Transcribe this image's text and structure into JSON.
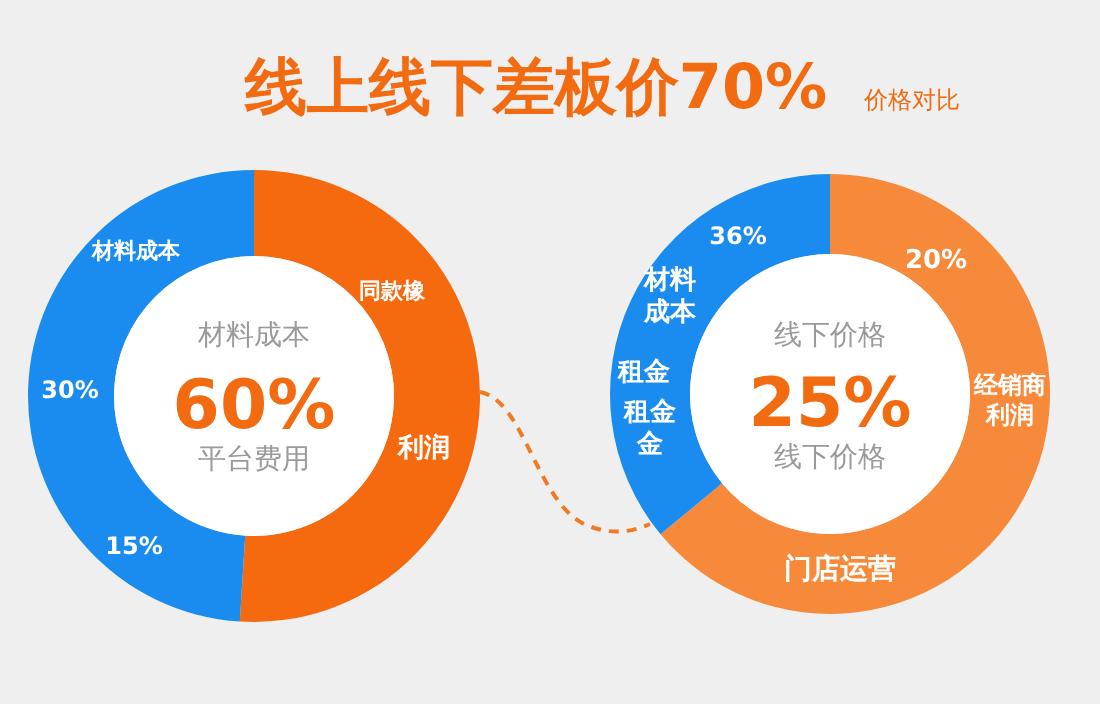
{
  "chart_data": [
    {
      "type": "other",
      "title": "线上线下差板价70%",
      "subtitle": "价格对比"
    },
    {
      "type": "donut",
      "categories": [
        null,
        null
      ],
      "values": [
        51,
        49
      ],
      "colors": [
        "#f56a0f",
        "#1a8cf0"
      ],
      "annotations": [
        "材料成本",
        "30%",
        "15%",
        "同款橡",
        "利润",
        "材料成本",
        "60%",
        "平台费用"
      ]
    },
    {
      "type": "donut",
      "categories": [
        null,
        null
      ],
      "values": [
        64,
        36
      ],
      "colors": [
        "#f78a3a",
        "#1a8cf0"
      ],
      "annotations": [
        "36%",
        "材料成本",
        "租金",
        "租金金",
        "20%",
        "经销商利润",
        "门店运营",
        "线下价格",
        "25%",
        "线下价格"
      ]
    }
  ]
}
